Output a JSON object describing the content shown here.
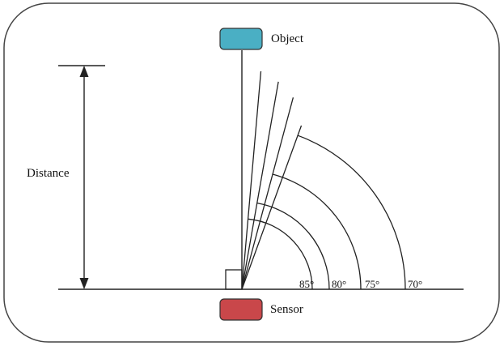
{
  "labels": {
    "object": "Object",
    "sensor": "Sensor",
    "distance": "Distance"
  },
  "angles": [
    {
      "label": "85°",
      "degrees": 85
    },
    {
      "label": "80°",
      "degrees": 80
    },
    {
      "label": "75°",
      "degrees": 75
    },
    {
      "label": "70°",
      "degrees": 70
    }
  ],
  "colors": {
    "object": "#4aafc4",
    "sensor": "#c9474a",
    "line": "#222222"
  }
}
